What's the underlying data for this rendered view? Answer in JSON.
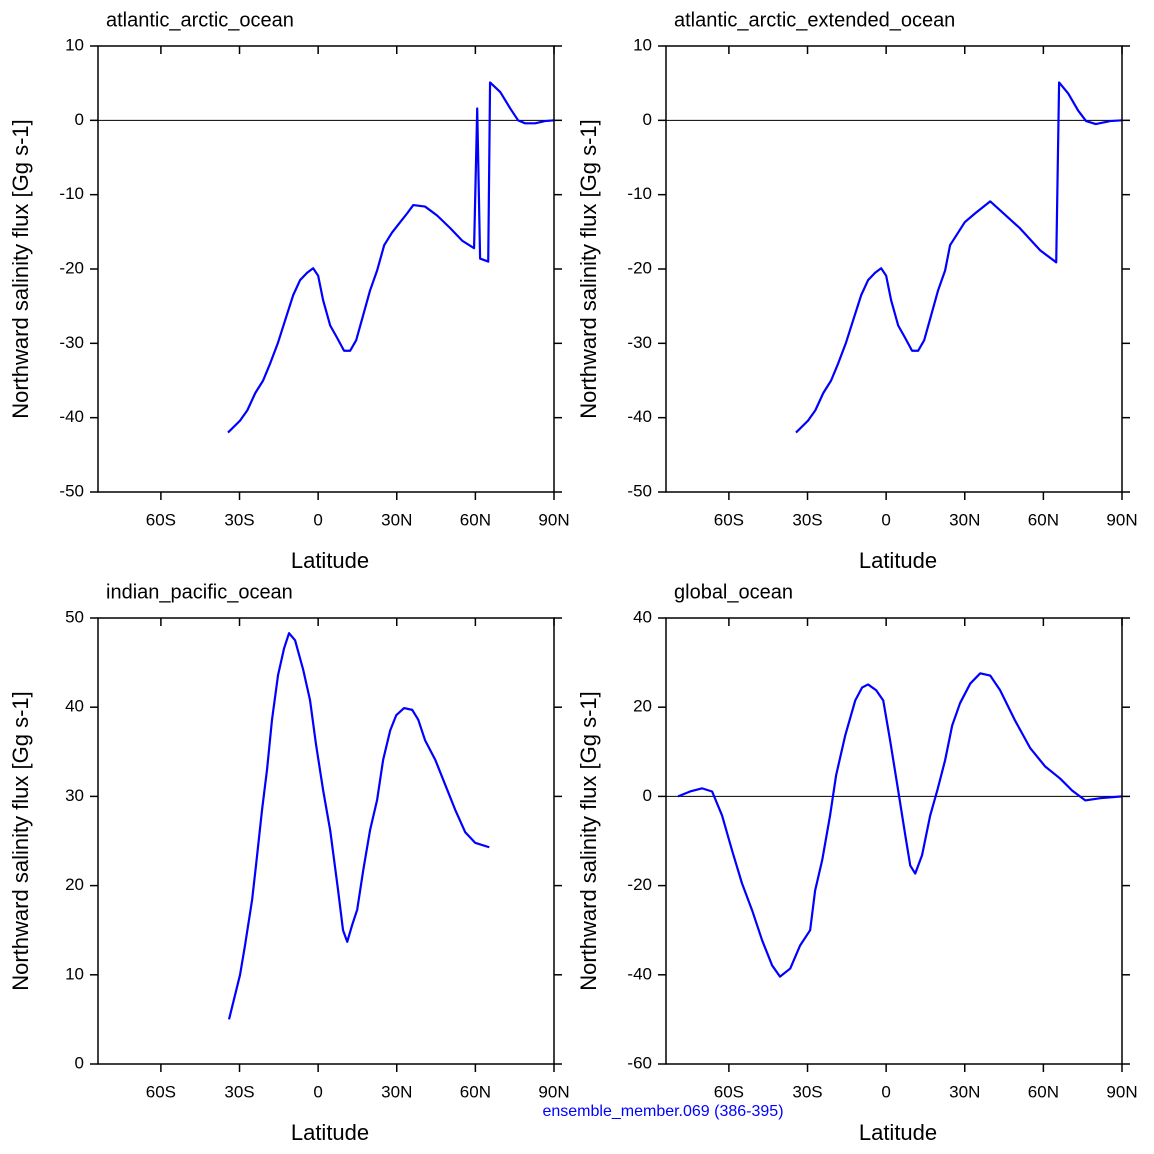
{
  "chart_data": [
    {
      "type": "line",
      "title": "atlantic_arctic_ocean",
      "xlabel": "Latitude",
      "ylabel": "Northward salinity flux [Gg s-1]",
      "xlim": [
        -84,
        90
      ],
      "ylim": [
        -50,
        10
      ],
      "xticks": [
        {
          "value": -60,
          "label": "60S"
        },
        {
          "value": -30,
          "label": "30S"
        },
        0,
        {
          "value": 30,
          "label": "30N"
        },
        {
          "value": 60,
          "label": "60N"
        },
        {
          "value": 90,
          "label": "90N"
        }
      ],
      "yticks": [
        -50,
        -40,
        -30,
        -20,
        -10,
        0,
        10
      ],
      "zero_line": true,
      "series": [
        {
          "color": "#0000ff",
          "x": [
            -34.4,
            -29.8,
            -27,
            -24,
            -21,
            -18.3,
            -15.3,
            -12.6,
            -9.5,
            -6.9,
            -4.2,
            -1.9,
            0,
            1.9,
            4.6,
            7.3,
            9.9,
            12.2,
            14.5,
            17.2,
            19.8,
            22.5,
            25.2,
            28.2,
            31.3,
            34,
            36.3,
            40.8,
            45.4,
            50.4,
            55,
            59.5,
            60.7,
            61.8,
            64.9,
            65.6,
            69.5,
            73.3,
            76.3,
            79,
            82.8,
            86.6,
            90
          ],
          "values": [
            -42,
            -40.4,
            -39,
            -36.7,
            -35,
            -32.7,
            -29.9,
            -26.9,
            -23.5,
            -21.5,
            -20.5,
            -19.9,
            -20.9,
            -24.2,
            -27.6,
            -29.3,
            -31,
            -31,
            -29.6,
            -26.2,
            -22.9,
            -20.2,
            -16.8,
            -15.1,
            -13.7,
            -12.5,
            -11.4,
            -11.6,
            -12.8,
            -14.5,
            -16.2,
            -17.2,
            1.6,
            -18.6,
            -19,
            5.1,
            3.8,
            1.6,
            0,
            -0.4,
            -0.4,
            -0.1,
            0
          ]
        }
      ]
    },
    {
      "type": "line",
      "title": "atlantic_arctic_extended_ocean",
      "xlabel": "Latitude",
      "ylabel": "Northward salinity flux [Gg s-1]",
      "xlim": [
        -84,
        90
      ],
      "ylim": [
        -50,
        10
      ],
      "xticks": [
        {
          "value": -60,
          "label": "60S"
        },
        {
          "value": -30,
          "label": "30S"
        },
        0,
        {
          "value": 30,
          "label": "30N"
        },
        {
          "value": 60,
          "label": "60N"
        },
        {
          "value": 90,
          "label": "90N"
        }
      ],
      "yticks": [
        -50,
        -40,
        -30,
        -20,
        -10,
        0,
        10
      ],
      "zero_line": true,
      "series": [
        {
          "color": "#0000ff",
          "x": [
            -34.4,
            -29.8,
            -27,
            -24,
            -21,
            -18.3,
            -15.3,
            -12.6,
            -9.5,
            -6.9,
            -4.2,
            -1.9,
            0,
            1.9,
            4.6,
            7.3,
            9.9,
            12.2,
            14.5,
            17.2,
            19.8,
            22.5,
            24.4,
            30,
            34,
            39.7,
            43.5,
            51,
            58.8,
            64.9,
            66,
            69.5,
            73.3,
            76.3,
            80,
            85.5,
            90
          ],
          "values": [
            -42,
            -40.4,
            -39,
            -36.7,
            -35,
            -32.7,
            -29.9,
            -26.9,
            -23.5,
            -21.5,
            -20.5,
            -19.9,
            -20.9,
            -24.2,
            -27.6,
            -29.3,
            -31,
            -31,
            -29.6,
            -26.2,
            -22.9,
            -20.2,
            -16.8,
            -13.7,
            -12.5,
            -10.9,
            -12.1,
            -14.5,
            -17.5,
            -19.1,
            5.1,
            3.6,
            1.3,
            -0.1,
            -0.5,
            -0.1,
            0
          ]
        }
      ]
    },
    {
      "type": "line",
      "title": "indian_pacific_ocean",
      "xlabel": "Latitude",
      "ylabel": "Northward salinity flux [Gg s-1]",
      "xlim": [
        -84,
        90
      ],
      "ylim": [
        0,
        50
      ],
      "xticks": [
        {
          "value": -60,
          "label": "60S"
        },
        {
          "value": -30,
          "label": "30S"
        },
        0,
        {
          "value": 30,
          "label": "30N"
        },
        {
          "value": 60,
          "label": "60N"
        },
        {
          "value": 90,
          "label": "90N"
        }
      ],
      "yticks": [
        0,
        10,
        20,
        30,
        40,
        50
      ],
      "zero_line": false,
      "series": [
        {
          "color": "#0000ff",
          "x": [
            -34,
            -29.8,
            -27.9,
            -25.2,
            -23.7,
            -21.4,
            -19.5,
            -17.6,
            -15.3,
            -13,
            -11.1,
            -8.8,
            -5.7,
            -3.1,
            -0.8,
            1.9,
            4.6,
            7.6,
            9.5,
            11.1,
            13,
            14.9,
            17.2,
            19.8,
            22.5,
            24.8,
            27.5,
            29.8,
            32.8,
            35.9,
            38.2,
            40.8,
            44.7,
            48.5,
            52.3,
            56.1,
            59.9,
            65.3
          ],
          "values": [
            5,
            10,
            13.3,
            18.4,
            22.3,
            28.5,
            33,
            38.6,
            43.6,
            46.6,
            48.3,
            47.5,
            44.2,
            40.8,
            35.8,
            30.7,
            26.2,
            19.5,
            15,
            13.7,
            15.6,
            17.3,
            21.7,
            26.2,
            29.6,
            34.1,
            37.4,
            39.1,
            39.9,
            39.7,
            38.6,
            36.3,
            34.1,
            31.3,
            28.5,
            26,
            24.8,
            24.3
          ]
        }
      ]
    },
    {
      "type": "line",
      "title": "global_ocean",
      "xlabel": "Latitude",
      "ylabel": "Northward salinity flux [Gg s-1]",
      "xlim": [
        -84,
        90
      ],
      "ylim": [
        -60,
        40
      ],
      "xticks": [
        {
          "value": -60,
          "label": "60S"
        },
        {
          "value": -30,
          "label": "30S"
        },
        0,
        {
          "value": 30,
          "label": "30N"
        },
        {
          "value": 60,
          "label": "60N"
        },
        {
          "value": 90,
          "label": "90N"
        }
      ],
      "yticks": [
        -60,
        -40,
        -20,
        0,
        20,
        40
      ],
      "zero_line": true,
      "series": [
        {
          "color": "#0000ff",
          "x": [
            -79.4,
            -74.8,
            -70.2,
            -66.4,
            -62.6,
            -58.8,
            -55,
            -51.1,
            -47.3,
            -43.5,
            -40.5,
            -36.6,
            -32.8,
            -29,
            -27.1,
            -24.4,
            -21.4,
            -19.1,
            -15.6,
            -11.8,
            -9.2,
            -6.9,
            -3.8,
            -1.1,
            1.5,
            4.6,
            7.3,
            9.2,
            11.1,
            13.7,
            16.8,
            19.5,
            22.5,
            25.2,
            28.2,
            32.1,
            35.9,
            39.7,
            43.5,
            49.2,
            55,
            60.7,
            66.4,
            71,
            76,
            81.7,
            90
          ],
          "values": [
            0,
            1.1,
            1.8,
            1.1,
            -4.3,
            -12.1,
            -19.5,
            -25.6,
            -32.3,
            -37.9,
            -40.4,
            -38.6,
            -33.4,
            -30,
            -21.1,
            -14.3,
            -4.3,
            4.7,
            13.7,
            21.5,
            24.4,
            25.1,
            23.8,
            21.5,
            12.6,
            1.3,
            -8.7,
            -15.5,
            -17.3,
            -13.2,
            -4.3,
            1.3,
            8.1,
            15.9,
            20.9,
            25.3,
            27.6,
            27.1,
            23.8,
            17,
            10.8,
            6.7,
            4,
            1.3,
            -0.9,
            -0.4,
            0
          ]
        }
      ]
    }
  ],
  "footer": "ensemble_member.069 (386-395)"
}
